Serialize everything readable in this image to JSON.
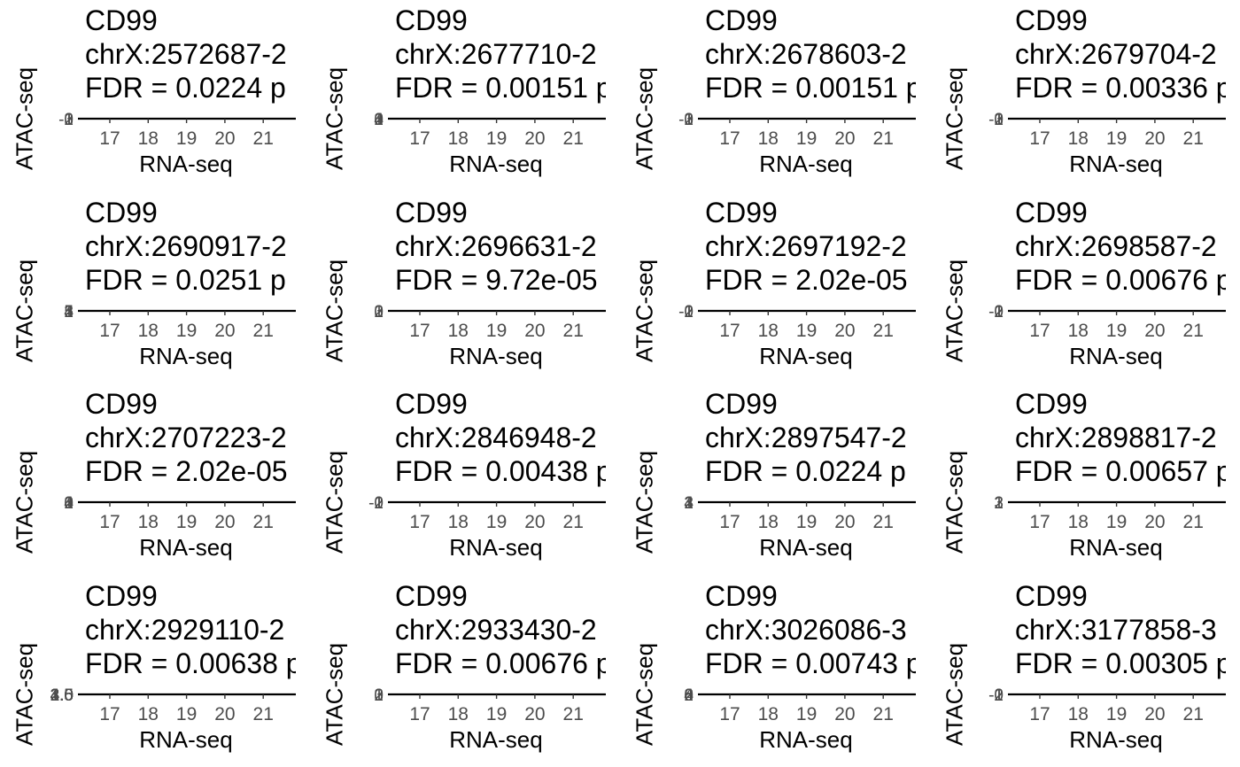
{
  "chart_data": {
    "type": "scatter",
    "layout": "facet grid 4 rows x 4 columns",
    "xlabel": "RNA-seq",
    "ylabel": "ATAC-seq",
    "x_ticks": [
      "17",
      "18",
      "19",
      "20",
      "21"
    ],
    "xlim": [
      16.2,
      21.9
    ],
    "grid": false,
    "panels": [
      {
        "gene": "CD99",
        "region": "chrX:2572687-2",
        "fdr": "FDR = 0.0224 p",
        "y_ticks": [
          "-1",
          "0",
          "1",
          "2",
          "3"
        ]
      },
      {
        "gene": "CD99",
        "region": "chrX:2677710-2",
        "fdr": "FDR = 0.00151 p",
        "y_ticks": [
          "0",
          "1",
          "2",
          "3",
          "4"
        ]
      },
      {
        "gene": "CD99",
        "region": "chrX:2678603-2",
        "fdr": "FDR = 0.00151 p",
        "y_ticks": [
          "-1",
          "0",
          "1",
          "2",
          "3"
        ]
      },
      {
        "gene": "CD99",
        "region": "chrX:2679704-2",
        "fdr": "FDR = 0.00336 p",
        "y_ticks": [
          "-1",
          "0",
          "1",
          "2",
          "3"
        ]
      },
      {
        "gene": "CD99",
        "region": "chrX:2690917-2",
        "fdr": "FDR = 0.0251 p",
        "y_ticks": [
          "1",
          "2",
          "3",
          "4",
          "5"
        ]
      },
      {
        "gene": "CD99",
        "region": "chrX:2696631-2",
        "fdr": "FDR = 9.72e-05",
        "y_ticks": [
          "0",
          "1",
          "2",
          "3"
        ]
      },
      {
        "gene": "CD99",
        "region": "chrX:2697192-2",
        "fdr": "FDR = 2.02e-05",
        "y_ticks": [
          "-2",
          "-1",
          "0",
          "1",
          "2"
        ]
      },
      {
        "gene": "CD99",
        "region": "chrX:2698587-2",
        "fdr": "FDR = 0.00676 p",
        "y_ticks": [
          "-2",
          "-1",
          "0",
          "1",
          "2"
        ]
      },
      {
        "gene": "CD99",
        "region": "chrX:2707223-2",
        "fdr": "FDR = 2.02e-05",
        "y_ticks": [
          "0",
          "1",
          "2",
          "3",
          "4"
        ]
      },
      {
        "gene": "CD99",
        "region": "chrX:2846948-2",
        "fdr": "FDR = 0.00438 p",
        "y_ticks": [
          "-2",
          "-1",
          "0",
          "1"
        ]
      },
      {
        "gene": "CD99",
        "region": "chrX:2897547-2",
        "fdr": "FDR = 0.0224 p",
        "y_ticks": [
          "1",
          "2",
          "3",
          "4"
        ]
      },
      {
        "gene": "CD99",
        "region": "chrX:2898817-2",
        "fdr": "FDR = 0.00657 p",
        "y_ticks": [
          "1",
          "2",
          "3"
        ]
      },
      {
        "gene": "CD99",
        "region": "chrX:2929110-2",
        "fdr": "FDR = 0.00638 p",
        "y_ticks": [
          "1.5",
          "2.0",
          "2.5",
          "3.0",
          "3.5",
          "4.0",
          "4.5"
        ]
      },
      {
        "gene": "CD99",
        "region": "chrX:2933430-2",
        "fdr": "FDR = 0.00676 p",
        "y_ticks": [
          "0",
          "1",
          "2",
          "3"
        ]
      },
      {
        "gene": "CD99",
        "region": "chrX:3026086-3",
        "fdr": "FDR = 0.00743 p",
        "y_ticks": [
          "0",
          "2",
          "4",
          "6",
          "8"
        ]
      },
      {
        "gene": "CD99",
        "region": "chrX:3177858-3",
        "fdr": "FDR = 0.00305 p",
        "y_ticks": [
          "-2",
          "-1",
          "0",
          "1",
          "2"
        ]
      }
    ]
  }
}
